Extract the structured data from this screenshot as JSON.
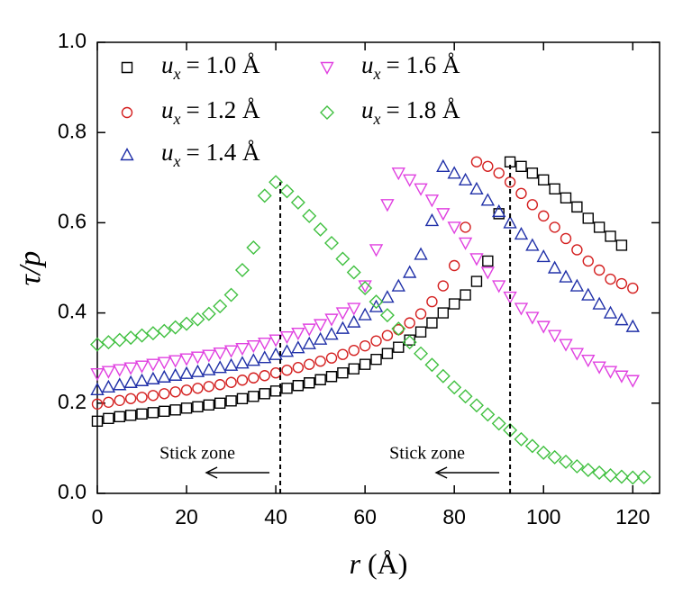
{
  "chart_data": {
    "type": "scatter",
    "xlabel_var": "r",
    "xlabel_unit": "(Å)",
    "ylabel": "τ/p",
    "legend_var": "u",
    "legend_sub": "x",
    "xlim": [
      0,
      126
    ],
    "ylim": [
      0,
      1.0
    ],
    "xticks": [
      0,
      20,
      40,
      60,
      80,
      100,
      120
    ],
    "yticks": [
      {
        "value": 0,
        "label": "0.0"
      },
      0.2,
      0.4,
      0.6,
      0.8,
      {
        "value": 1,
        "label": "1.0"
      }
    ],
    "annotations": [
      {
        "text": "Stick zone",
        "x": 41,
        "y": 0.69
      },
      {
        "text": "Stick zone",
        "x": 92.5,
        "y": 0.735
      }
    ],
    "series": [
      {
        "name": "= 1.0 Å",
        "color": "#000000",
        "marker": "square",
        "x": [
          0,
          2.5,
          5,
          7.5,
          10,
          12.5,
          15,
          17.5,
          20,
          22.5,
          25,
          27.5,
          30,
          32.5,
          35,
          37.5,
          40,
          42.5,
          45,
          47.5,
          50,
          52.5,
          55,
          57.5,
          60,
          62.5,
          65,
          67.5,
          70,
          72.5,
          75,
          77.5,
          80,
          82.5,
          85,
          87.5,
          90,
          92.5,
          95,
          97.5,
          100,
          102.5,
          105,
          107.5,
          110,
          112.5,
          115,
          117.5
        ],
        "values": [
          0.16,
          0.166,
          0.17,
          0.173,
          0.176,
          0.179,
          0.182,
          0.185,
          0.189,
          0.192,
          0.196,
          0.2,
          0.205,
          0.21,
          0.215,
          0.221,
          0.227,
          0.233,
          0.239,
          0.245,
          0.252,
          0.259,
          0.267,
          0.276,
          0.286,
          0.297,
          0.31,
          0.324,
          0.34,
          0.358,
          0.378,
          0.4,
          0.42,
          0.44,
          0.47,
          0.515,
          0.62,
          0.735,
          0.725,
          0.71,
          0.695,
          0.675,
          0.655,
          0.635,
          0.61,
          0.59,
          0.57,
          0.55
        ]
      },
      {
        "name": "= 1.2 Å",
        "color": "#d42020",
        "marker": "circle",
        "x": [
          0,
          2.5,
          5,
          7.5,
          10,
          12.5,
          15,
          17.5,
          20,
          22.5,
          25,
          27.5,
          30,
          32.5,
          35,
          37.5,
          40,
          42.5,
          45,
          47.5,
          50,
          52.5,
          55,
          57.5,
          60,
          62.5,
          65,
          67.5,
          70,
          72.5,
          75,
          77.5,
          80,
          82.5,
          85,
          87.5,
          90,
          92.5,
          95,
          97.5,
          100,
          102.5,
          105,
          107.5,
          110,
          112.5,
          115,
          117.5,
          120
        ],
        "values": [
          0.198,
          0.202,
          0.206,
          0.21,
          0.213,
          0.217,
          0.221,
          0.225,
          0.229,
          0.233,
          0.237,
          0.241,
          0.246,
          0.251,
          0.256,
          0.261,
          0.267,
          0.273,
          0.279,
          0.286,
          0.293,
          0.3,
          0.308,
          0.317,
          0.327,
          0.338,
          0.35,
          0.363,
          0.378,
          0.398,
          0.425,
          0.46,
          0.505,
          0.59,
          0.735,
          0.725,
          0.71,
          0.69,
          0.665,
          0.64,
          0.615,
          0.59,
          0.565,
          0.54,
          0.515,
          0.495,
          0.475,
          0.465,
          0.455
        ]
      },
      {
        "name": "= 1.4 Å",
        "color": "#2030a8",
        "marker": "triangle-up",
        "x": [
          0,
          2.5,
          5,
          7.5,
          10,
          12.5,
          15,
          17.5,
          20,
          22.5,
          25,
          27.5,
          30,
          32.5,
          35,
          37.5,
          40,
          42.5,
          45,
          47.5,
          50,
          52.5,
          55,
          57.5,
          60,
          62.5,
          65,
          67.5,
          70,
          72.5,
          75,
          77.5,
          80,
          82.5,
          85,
          87.5,
          90,
          92.5,
          95,
          97.5,
          100,
          102.5,
          105,
          107.5,
          110,
          112.5,
          115,
          117.5,
          120
        ],
        "values": [
          0.23,
          0.236,
          0.241,
          0.246,
          0.25,
          0.254,
          0.258,
          0.262,
          0.266,
          0.27,
          0.274,
          0.279,
          0.284,
          0.289,
          0.295,
          0.301,
          0.308,
          0.315,
          0.323,
          0.332,
          0.342,
          0.353,
          0.366,
          0.38,
          0.396,
          0.414,
          0.435,
          0.46,
          0.49,
          0.53,
          0.605,
          0.725,
          0.71,
          0.695,
          0.675,
          0.65,
          0.625,
          0.6,
          0.575,
          0.55,
          0.525,
          0.5,
          0.48,
          0.46,
          0.44,
          0.42,
          0.4,
          0.385,
          0.37
        ]
      },
      {
        "name": "= 1.6 Å",
        "color": "#e040e0",
        "marker": "triangle-down",
        "x": [
          0,
          2.5,
          5,
          7.5,
          10,
          12.5,
          15,
          17.5,
          20,
          22.5,
          25,
          27.5,
          30,
          32.5,
          35,
          37.5,
          40,
          42.5,
          45,
          47.5,
          50,
          52.5,
          55,
          57.5,
          60,
          62.5,
          65,
          67.5,
          70,
          72.5,
          75,
          77.5,
          80,
          82.5,
          85,
          87.5,
          90,
          92.5,
          95,
          97.5,
          100,
          102.5,
          105,
          107.5,
          110,
          112.5,
          115,
          117.5,
          120
        ],
        "values": [
          0.265,
          0.27,
          0.274,
          0.278,
          0.282,
          0.286,
          0.29,
          0.294,
          0.298,
          0.302,
          0.306,
          0.311,
          0.316,
          0.321,
          0.327,
          0.333,
          0.34,
          0.347,
          0.355,
          0.364,
          0.374,
          0.386,
          0.4,
          0.41,
          0.46,
          0.54,
          0.64,
          0.71,
          0.695,
          0.675,
          0.65,
          0.62,
          0.59,
          0.555,
          0.52,
          0.49,
          0.46,
          0.435,
          0.41,
          0.39,
          0.37,
          0.35,
          0.33,
          0.31,
          0.295,
          0.28,
          0.27,
          0.26,
          0.25
        ]
      },
      {
        "name": "= 1.8 Å",
        "color": "#40c040",
        "marker": "diamond",
        "x": [
          0,
          2.5,
          5,
          7.5,
          10,
          12.5,
          15,
          17.5,
          20,
          22.5,
          25,
          27.5,
          30,
          32.5,
          35,
          37.5,
          40,
          42.5,
          45,
          47.5,
          50,
          52.5,
          55,
          57.5,
          60,
          62.5,
          65,
          67.5,
          70,
          72.5,
          75,
          77.5,
          80,
          82.5,
          85,
          87.5,
          90,
          92.5,
          95,
          97.5,
          100,
          102.5,
          105,
          107.5,
          110,
          112.5,
          115,
          117.5,
          120,
          122.5
        ],
        "values": [
          0.33,
          0.335,
          0.34,
          0.345,
          0.35,
          0.355,
          0.36,
          0.368,
          0.376,
          0.386,
          0.398,
          0.415,
          0.44,
          0.495,
          0.545,
          0.66,
          0.69,
          0.67,
          0.645,
          0.615,
          0.585,
          0.555,
          0.52,
          0.49,
          0.455,
          0.425,
          0.395,
          0.365,
          0.335,
          0.31,
          0.285,
          0.26,
          0.235,
          0.215,
          0.195,
          0.175,
          0.155,
          0.14,
          0.12,
          0.105,
          0.09,
          0.08,
          0.07,
          0.06,
          0.052,
          0.046,
          0.04,
          0.037,
          0.035,
          0.036
        ]
      }
    ]
  }
}
